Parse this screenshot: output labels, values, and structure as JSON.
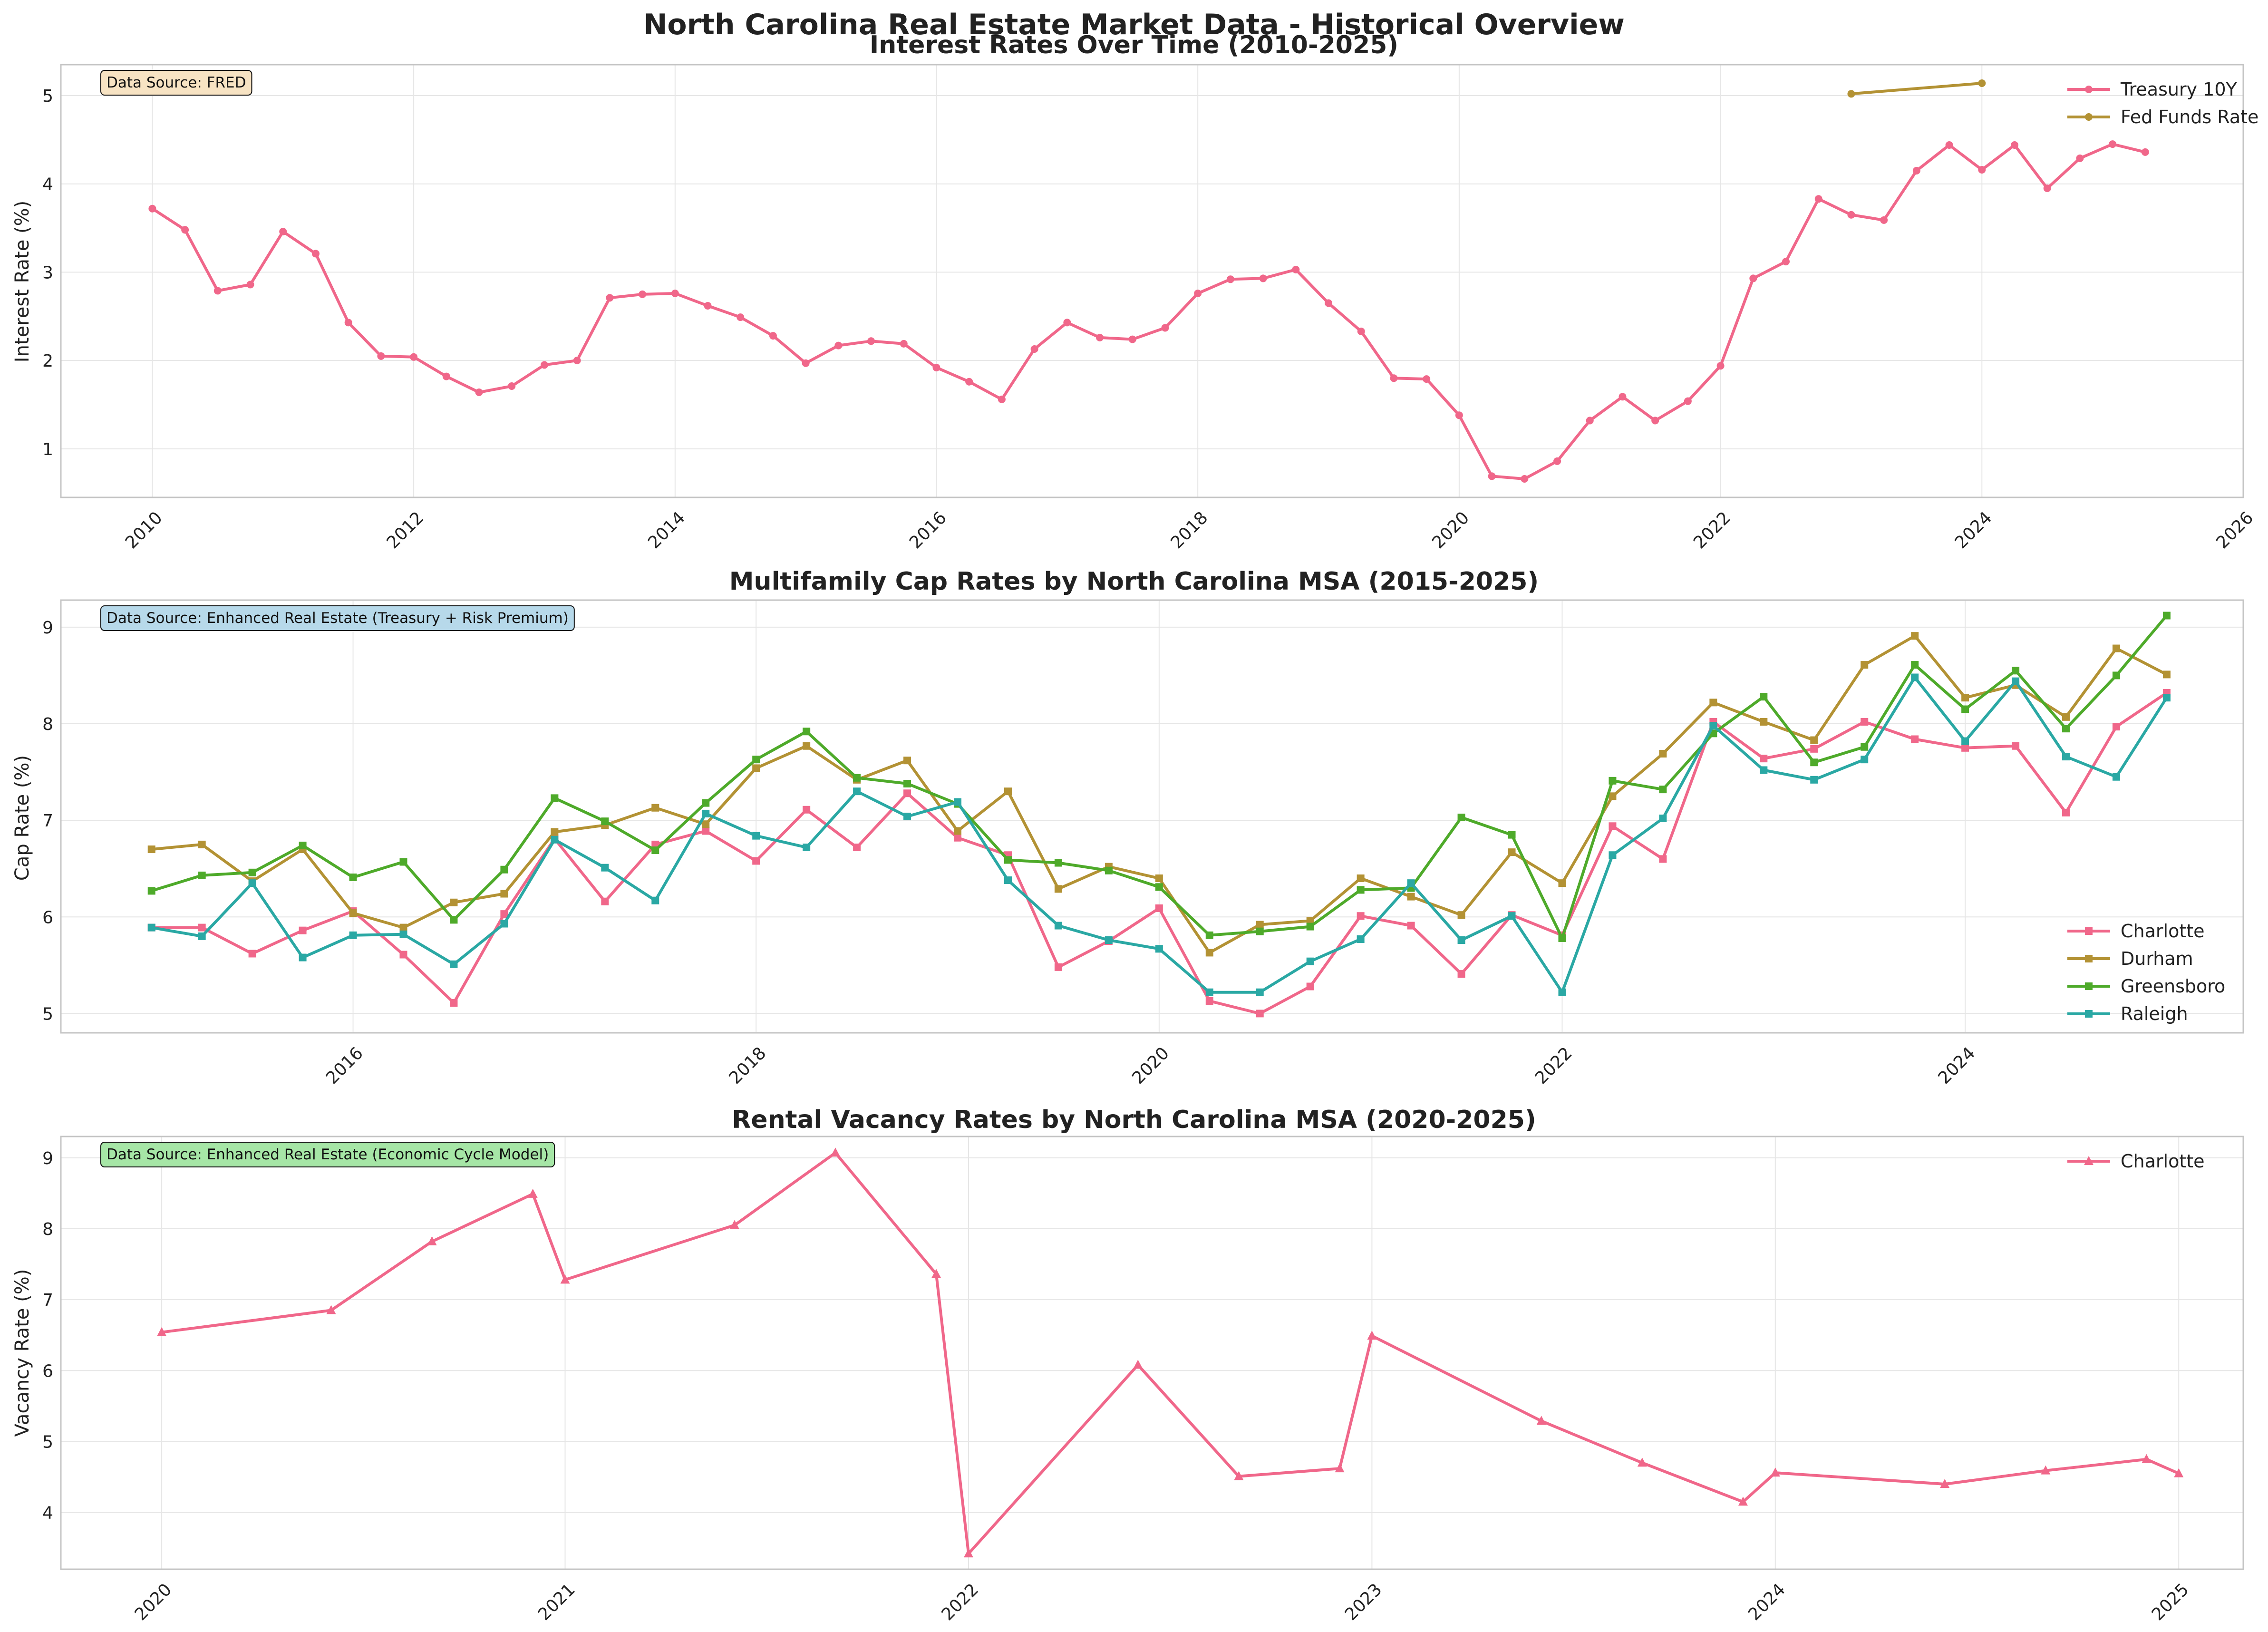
{
  "figure": {
    "title": "North Carolina Real Estate Market Data - Historical Overview"
  },
  "chart_data": [
    {
      "type": "line",
      "title": "Interest Rates Over Time (2010-2025)",
      "xlabel": "",
      "ylabel": "Interest Rate (%)",
      "xlim": [
        2009.3,
        2026.0
      ],
      "ylim": [
        0.45,
        5.35
      ],
      "x_ticks": [
        2010,
        2012,
        2014,
        2016,
        2018,
        2020,
        2022,
        2024,
        2026
      ],
      "y_ticks": [
        1,
        2,
        3,
        4,
        5
      ],
      "grid": true,
      "legend_position": "top-right",
      "note": "Data Source: FRED",
      "note_color": "#f7e3c3",
      "series": [
        {
          "name": "Treasury 10Y",
          "color": "#f0678a",
          "marker": "circle",
          "x": [
            2010.0,
            2010.25,
            2010.5,
            2010.75,
            2011.0,
            2011.25,
            2011.5,
            2011.75,
            2012.0,
            2012.25,
            2012.5,
            2012.75,
            2013.0,
            2013.25,
            2013.5,
            2013.75,
            2014.0,
            2014.25,
            2014.5,
            2014.75,
            2015.0,
            2015.25,
            2015.5,
            2015.75,
            2016.0,
            2016.25,
            2016.5,
            2016.75,
            2017.0,
            2017.25,
            2017.5,
            2017.75,
            2018.0,
            2018.25,
            2018.5,
            2018.75,
            2019.0,
            2019.25,
            2019.5,
            2019.75,
            2020.0,
            2020.25,
            2020.5,
            2020.75,
            2021.0,
            2021.25,
            2021.5,
            2021.75,
            2022.0,
            2022.25,
            2022.5,
            2022.75,
            2023.0,
            2023.25,
            2023.5,
            2023.75,
            2024.0,
            2024.25,
            2024.5,
            2024.75,
            2025.0,
            2025.25
          ],
          "values": [
            3.72,
            3.48,
            2.79,
            2.86,
            3.46,
            3.21,
            2.43,
            2.05,
            2.04,
            1.82,
            1.64,
            1.71,
            1.95,
            2.0,
            2.71,
            2.75,
            2.76,
            2.62,
            2.49,
            2.28,
            1.97,
            2.17,
            2.22,
            2.19,
            1.92,
            1.76,
            1.56,
            2.13,
            2.43,
            2.26,
            2.24,
            2.37,
            2.76,
            2.92,
            2.93,
            3.03,
            2.65,
            2.33,
            1.8,
            1.79,
            1.38,
            0.69,
            0.66,
            0.86,
            1.32,
            1.59,
            1.32,
            1.54,
            1.94,
            2.93,
            3.12,
            3.83,
            3.65,
            3.59,
            4.15,
            4.44,
            4.16,
            4.44,
            3.95,
            4.29,
            4.45,
            4.36
          ]
        },
        {
          "name": "Fed Funds Rate",
          "color": "#b39234",
          "marker": "circle",
          "x": [
            2023.0,
            2024.0
          ],
          "values": [
            5.02,
            5.14
          ]
        }
      ]
    },
    {
      "type": "line",
      "title": "Multifamily Cap Rates by North Carolina MSA (2015-2025)",
      "xlabel": "",
      "ylabel": "Cap Rate (%)",
      "xlim": [
        2014.55,
        2025.38
      ],
      "ylim": [
        4.8,
        9.28
      ],
      "x_ticks": [
        2016,
        2018,
        2020,
        2022,
        2024
      ],
      "y_ticks": [
        5,
        6,
        7,
        8,
        9
      ],
      "grid": true,
      "legend_position": "lower-right",
      "note": "Data Source: Enhanced Real Estate (Treasury + Risk Premium)",
      "note_color": "#b7d9ea",
      "x": [
        2015.0,
        2015.25,
        2015.5,
        2015.75,
        2016.0,
        2016.25,
        2016.5,
        2016.75,
        2017.0,
        2017.25,
        2017.5,
        2017.75,
        2018.0,
        2018.25,
        2018.5,
        2018.75,
        2019.0,
        2019.25,
        2019.5,
        2019.75,
        2020.0,
        2020.25,
        2020.5,
        2020.75,
        2021.0,
        2021.25,
        2021.5,
        2021.75,
        2022.0,
        2022.25,
        2022.5,
        2022.75,
        2023.0,
        2023.25,
        2023.5,
        2023.75,
        2024.0,
        2024.25,
        2024.5,
        2024.75,
        2025.0
      ],
      "series": [
        {
          "name": "Charlotte",
          "color": "#f0678a",
          "marker": "square",
          "values": [
            5.89,
            5.89,
            5.62,
            5.86,
            6.06,
            5.61,
            5.11,
            6.03,
            6.81,
            6.16,
            6.75,
            6.89,
            6.58,
            7.11,
            6.72,
            7.28,
            6.82,
            6.64,
            5.48,
            5.75,
            6.09,
            5.13,
            5.0,
            5.28,
            6.01,
            5.91,
            5.41,
            6.02,
            5.81,
            6.94,
            6.6,
            8.02,
            7.64,
            7.74,
            8.02,
            7.84,
            7.75,
            7.77,
            7.08,
            7.97,
            8.32
          ]
        },
        {
          "name": "Durham",
          "color": "#b39234",
          "marker": "square",
          "values": [
            6.7,
            6.75,
            6.37,
            6.7,
            6.04,
            5.89,
            6.15,
            6.24,
            6.88,
            6.95,
            7.13,
            6.96,
            7.54,
            7.77,
            7.42,
            7.62,
            6.89,
            7.3,
            6.29,
            6.52,
            6.4,
            5.63,
            5.92,
            5.96,
            6.4,
            6.21,
            6.02,
            6.67,
            6.35,
            7.25,
            7.69,
            8.22,
            8.02,
            7.83,
            8.61,
            8.91,
            8.27,
            8.4,
            8.07,
            8.78,
            8.51
          ]
        },
        {
          "name": "Greensboro",
          "color": "#4eaa2a",
          "marker": "square",
          "values": [
            6.27,
            6.43,
            6.46,
            6.74,
            6.41,
            6.57,
            5.97,
            6.49,
            7.23,
            6.99,
            6.69,
            7.18,
            7.63,
            7.92,
            7.44,
            7.38,
            7.17,
            6.59,
            6.56,
            6.48,
            6.31,
            5.81,
            5.85,
            5.9,
            6.28,
            6.3,
            7.03,
            6.85,
            5.78,
            7.41,
            7.32,
            7.9,
            8.28,
            7.6,
            7.76,
            8.61,
            8.15,
            8.55,
            7.95,
            8.5,
            9.12
          ]
        },
        {
          "name": "Raleigh",
          "color": "#2aa8a4",
          "marker": "square",
          "values": [
            5.89,
            5.8,
            6.35,
            5.58,
            5.81,
            5.82,
            5.51,
            5.93,
            6.8,
            6.51,
            6.17,
            7.07,
            6.84,
            6.72,
            7.3,
            7.04,
            7.19,
            6.38,
            5.91,
            5.76,
            5.67,
            5.22,
            5.22,
            5.54,
            5.77,
            6.35,
            5.76,
            6.01,
            5.22,
            6.64,
            7.02,
            7.98,
            7.52,
            7.42,
            7.63,
            8.48,
            7.82,
            8.44,
            7.66,
            7.45,
            8.27
          ]
        }
      ]
    },
    {
      "type": "line",
      "title": "Rental Vacancy Rates by North Carolina MSA (2020-2025)",
      "xlabel": "",
      "ylabel": "Vacancy Rate (%)",
      "xlim": [
        2019.75,
        2025.16
      ],
      "ylim": [
        3.2,
        9.3
      ],
      "x_ticks": [
        2020,
        2021,
        2022,
        2023,
        2024,
        2025
      ],
      "y_ticks": [
        4,
        5,
        6,
        7,
        8,
        9
      ],
      "grid": true,
      "legend_position": "top-right",
      "note": "Data Source: Enhanced Real Estate (Economic Cycle Model)",
      "note_color": "#a6e6a6",
      "series": [
        {
          "name": "Charlotte",
          "color": "#f0678a",
          "marker": "triangle",
          "x": [
            2020.0,
            2020.42,
            2020.67,
            2020.92,
            2021.0,
            2021.42,
            2021.67,
            2021.92,
            2022.0,
            2022.42,
            2022.67,
            2022.92,
            2023.0,
            2023.42,
            2023.67,
            2023.92,
            2024.0,
            2024.42,
            2024.67,
            2024.92,
            2025.0
          ],
          "values": [
            6.54,
            6.85,
            7.82,
            8.49,
            7.28,
            8.05,
            9.07,
            7.36,
            3.42,
            6.08,
            4.51,
            4.62,
            6.49,
            5.29,
            4.7,
            4.15,
            4.56,
            4.4,
            4.59,
            4.75,
            4.55
          ]
        }
      ]
    }
  ]
}
